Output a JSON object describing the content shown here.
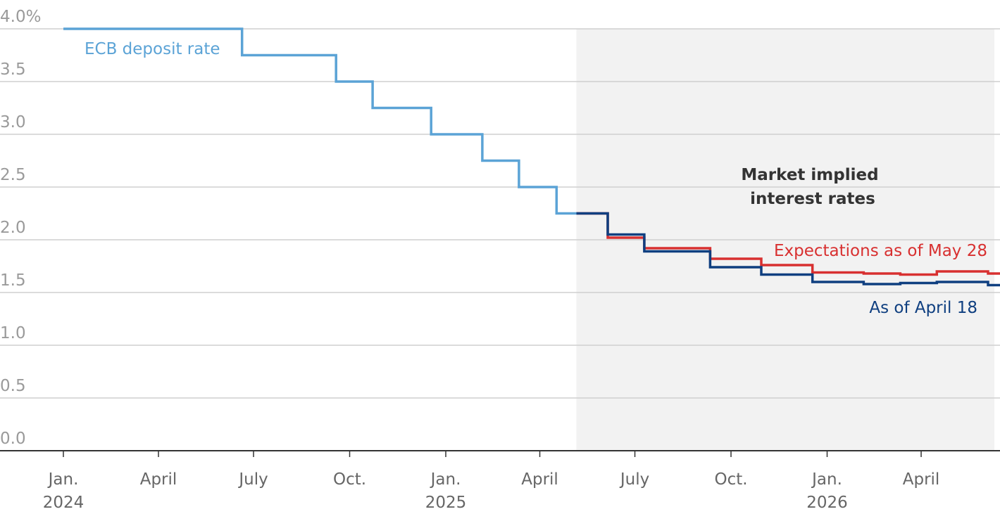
{
  "chart_data": {
    "type": "line",
    "y_unit_suffix": "%",
    "ylim": [
      0,
      4
    ],
    "yticks": [
      0,
      0.5,
      1,
      1.5,
      2,
      2.5,
      3,
      3.5,
      4
    ],
    "ytick_labels": [
      "0.0",
      "0.5",
      "1.0",
      "1.5",
      "2.0",
      "2.5",
      "3.0",
      "3.5",
      "4.0%"
    ],
    "xlim": [
      "2024-01-01",
      "2026-06-24"
    ],
    "xticks": [
      {
        "date": "2024-01-01",
        "label": "Jan.",
        "year": "2024"
      },
      {
        "date": "2024-04-01",
        "label": "April",
        "year": ""
      },
      {
        "date": "2024-07-01",
        "label": "July",
        "year": ""
      },
      {
        "date": "2024-10-01",
        "label": "Oct.",
        "year": ""
      },
      {
        "date": "2025-01-01",
        "label": "Jan.",
        "year": "2025"
      },
      {
        "date": "2025-04-01",
        "label": "April",
        "year": ""
      },
      {
        "date": "2025-07-01",
        "label": "July",
        "year": ""
      },
      {
        "date": "2025-10-01",
        "label": "Oct.",
        "year": ""
      },
      {
        "date": "2026-01-01",
        "label": "Jan.",
        "year": "2026"
      },
      {
        "date": "2026-04-01",
        "label": "April",
        "year": ""
      }
    ],
    "grid": true,
    "shaded_region": {
      "start": "2025-05-06",
      "end": "2026-06-24",
      "label_lines": [
        "Market implied",
        "interest rates"
      ]
    },
    "series": [
      {
        "name": "ECB deposit rate",
        "color": "#5ba3d6",
        "points": [
          [
            "2024-01-01",
            4.0
          ],
          [
            "2024-06-20",
            3.75
          ],
          [
            "2024-09-18",
            3.5
          ],
          [
            "2024-10-23",
            3.25
          ],
          [
            "2024-12-18",
            3.0
          ],
          [
            "2025-02-05",
            2.75
          ],
          [
            "2025-03-12",
            2.5
          ],
          [
            "2025-04-17",
            2.25
          ],
          [
            "2025-05-06",
            2.25
          ]
        ]
      },
      {
        "name": "Expectations as of May 28",
        "color": "#d83030",
        "points": [
          [
            "2025-05-06",
            2.25
          ],
          [
            "2025-06-05",
            2.02
          ],
          [
            "2025-07-10",
            1.92
          ],
          [
            "2025-09-11",
            1.82
          ],
          [
            "2025-10-30",
            1.76
          ],
          [
            "2025-12-18",
            1.69
          ],
          [
            "2026-02-05",
            1.68
          ],
          [
            "2026-03-12",
            1.67
          ],
          [
            "2026-04-16",
            1.7
          ],
          [
            "2026-06-04",
            1.68
          ],
          [
            "2026-06-20",
            1.68
          ]
        ]
      },
      {
        "name": "As of April 18",
        "color": "#0f3f80",
        "points": [
          [
            "2025-05-06",
            2.25
          ],
          [
            "2025-06-05",
            2.05
          ],
          [
            "2025-07-10",
            1.89
          ],
          [
            "2025-09-11",
            1.74
          ],
          [
            "2025-10-30",
            1.67
          ],
          [
            "2025-12-18",
            1.6
          ],
          [
            "2026-02-05",
            1.58
          ],
          [
            "2026-03-12",
            1.59
          ],
          [
            "2026-04-16",
            1.6
          ],
          [
            "2026-06-04",
            1.57
          ],
          [
            "2026-06-20",
            1.57
          ]
        ]
      }
    ]
  }
}
